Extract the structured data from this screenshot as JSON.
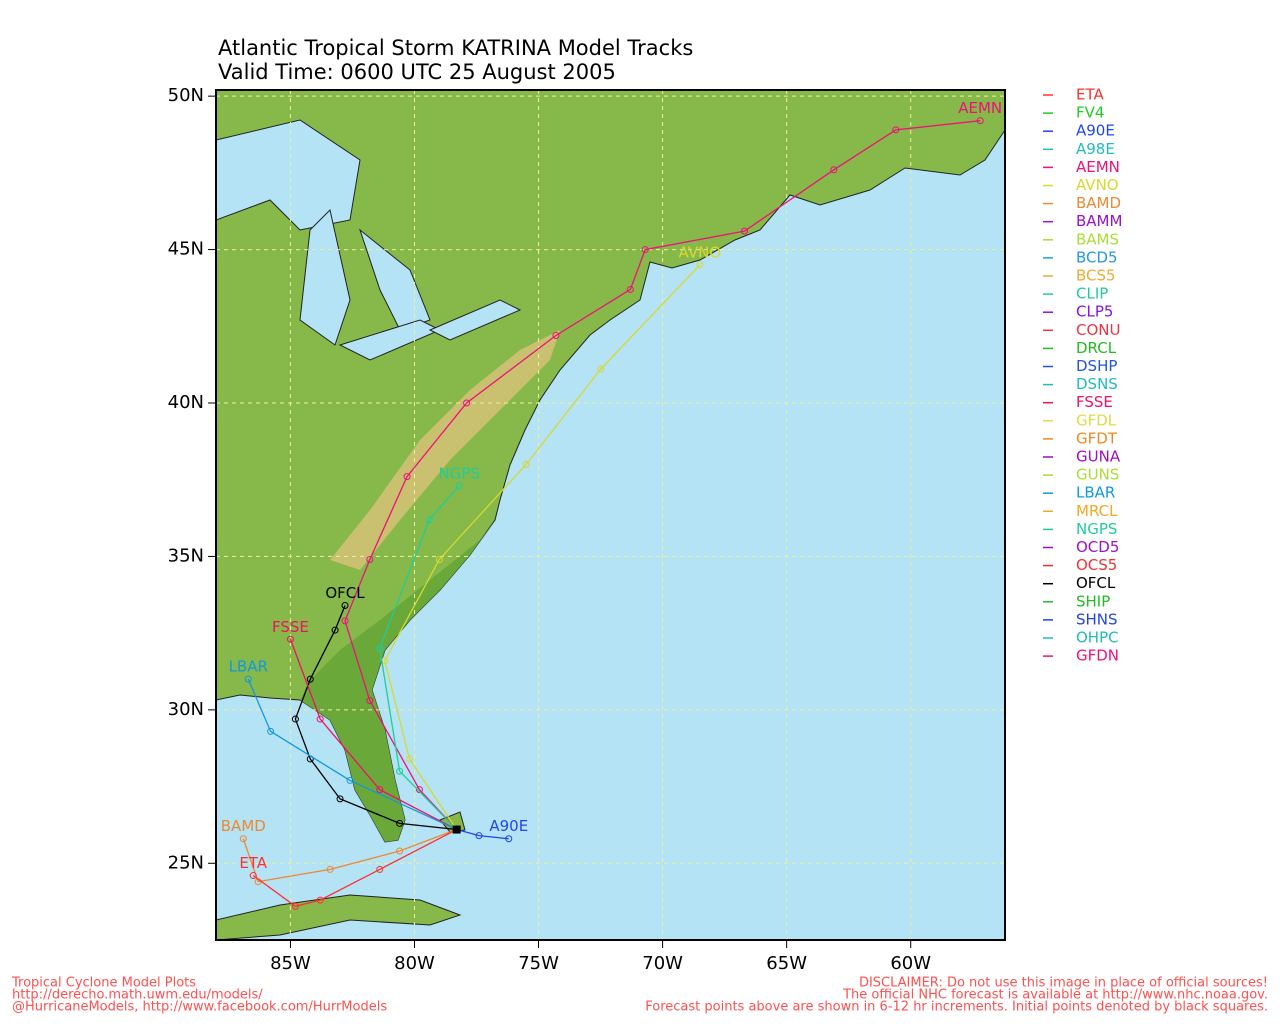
{
  "chart_data": {
    "type": "track",
    "title": "Atlantic Tropical Storm KATRINA Model Tracks",
    "subtitle": "Valid Time: 0600 UTC 25 August 2005",
    "xlim": [
      -88,
      -56.2
    ],
    "ylim": [
      22.5,
      50.2
    ],
    "xticks": [
      {
        "value": -85,
        "label": "85W"
      },
      {
        "value": -80,
        "label": "80W"
      },
      {
        "value": -75,
        "label": "75W"
      },
      {
        "value": -70,
        "label": "70W"
      },
      {
        "value": -65,
        "label": "65W"
      },
      {
        "value": -60,
        "label": "60W"
      }
    ],
    "yticks": [
      {
        "value": 25,
        "label": "25N"
      },
      {
        "value": 30,
        "label": "30N"
      },
      {
        "value": 35,
        "label": "35N"
      },
      {
        "value": 40,
        "label": "40N"
      },
      {
        "value": 45,
        "label": "45N"
      },
      {
        "value": 50,
        "label": "50N"
      }
    ],
    "grid": true,
    "legend": [
      {
        "name": "ETA",
        "color": "#ff3030"
      },
      {
        "name": "FV4",
        "color": "#22cc22"
      },
      {
        "name": "A90E",
        "color": "#2244ee"
      },
      {
        "name": "A98E",
        "color": "#22bbbb"
      },
      {
        "name": "AEMN",
        "color": "#ee1177"
      },
      {
        "name": "AVNO",
        "color": "#d8d830"
      },
      {
        "name": "BAMD",
        "color": "#ee8833"
      },
      {
        "name": "BAMM",
        "color": "#9911cc"
      },
      {
        "name": "BAMS",
        "color": "#aadd33"
      },
      {
        "name": "BCD5",
        "color": "#2299dd"
      },
      {
        "name": "BCS5",
        "color": "#eeaa33"
      },
      {
        "name": "CLIP",
        "color": "#22cc99"
      },
      {
        "name": "CLP5",
        "color": "#8811dd"
      },
      {
        "name": "CONU",
        "color": "#ee3344"
      },
      {
        "name": "DRCL",
        "color": "#22bb22"
      },
      {
        "name": "DSHP",
        "color": "#2255dd"
      },
      {
        "name": "DSNS",
        "color": "#22bbbb"
      },
      {
        "name": "FSSE",
        "color": "#ee1166"
      },
      {
        "name": "GFDL",
        "color": "#dddd44"
      },
      {
        "name": "GFDT",
        "color": "#ee8822"
      },
      {
        "name": "GUNA",
        "color": "#9911bb"
      },
      {
        "name": "GUNS",
        "color": "#aadd33"
      },
      {
        "name": "LBAR",
        "color": "#1199dd"
      },
      {
        "name": "MRCL",
        "color": "#eeaa22"
      },
      {
        "name": "NGPS",
        "color": "#22cc99"
      },
      {
        "name": "OCD5",
        "color": "#9911cc"
      },
      {
        "name": "OCS5",
        "color": "#ee3333"
      },
      {
        "name": "OFCL",
        "color": "#000000"
      },
      {
        "name": "SHIP",
        "color": "#22bb22"
      },
      {
        "name": "SHNS",
        "color": "#2244dd"
      },
      {
        "name": "OHPC",
        "color": "#22bbbb"
      },
      {
        "name": "GFDN",
        "color": "#ee1177"
      }
    ],
    "tracks": [
      {
        "name": "AEMN",
        "color": "#ee1177",
        "lon": [
          -78.3,
          -79.8,
          -81.8,
          -82.8,
          -81.8,
          -80.3,
          -77.9,
          -74.3,
          -71.3,
          -70.7,
          -66.7,
          -63.1,
          -60.6,
          -57.2
        ],
        "lat": [
          26.1,
          27.4,
          30.3,
          32.9,
          34.9,
          37.6,
          40.0,
          42.2,
          43.7,
          45.0,
          45.6,
          47.6,
          48.9,
          49.2
        ]
      },
      {
        "name": "AVNO",
        "color": "#d8d830",
        "lon": [
          -78.3,
          -80.2,
          -81.2,
          -79.0,
          -75.5,
          -72.5,
          -68.5
        ],
        "lat": [
          26.1,
          28.4,
          31.6,
          34.9,
          38.0,
          41.1,
          44.5
        ]
      },
      {
        "name": "NGPS",
        "color": "#22cc99",
        "lon": [
          -78.3,
          -80.6,
          -81.4,
          -79.4,
          -78.2
        ],
        "lat": [
          26.1,
          28.0,
          32.0,
          36.2,
          37.3
        ]
      },
      {
        "name": "OFCL",
        "color": "#000000",
        "lon": [
          -78.3,
          -80.6,
          -83.0,
          -84.2,
          -84.8,
          -84.2,
          -83.2,
          -82.8
        ],
        "lat": [
          26.1,
          26.3,
          27.1,
          28.4,
          29.7,
          31.0,
          32.6,
          33.4
        ]
      },
      {
        "name": "FSSE",
        "color": "#ee1166",
        "lon": [
          -78.3,
          -81.4,
          -83.8,
          -85.0
        ],
        "lat": [
          26.1,
          27.4,
          29.7,
          32.3
        ]
      },
      {
        "name": "LBAR",
        "color": "#1199dd",
        "lon": [
          -78.3,
          -82.6,
          -85.8,
          -86.7
        ],
        "lat": [
          26.1,
          27.7,
          29.3,
          31.0
        ]
      },
      {
        "name": "BAMD",
        "color": "#ee8833",
        "lon": [
          -78.3,
          -80.6,
          -83.4,
          -86.3,
          -86.9
        ],
        "lat": [
          26.1,
          25.4,
          24.8,
          24.4,
          25.8
        ]
      },
      {
        "name": "ETA",
        "color": "#ff3030",
        "lon": [
          -78.3,
          -81.4,
          -83.8,
          -84.8,
          -86.5
        ],
        "lat": [
          26.1,
          24.8,
          23.8,
          23.6,
          24.6
        ]
      },
      {
        "name": "A90E",
        "color": "#2244ee",
        "lon": [
          -78.3,
          -77.4,
          -76.2
        ],
        "lat": [
          26.1,
          25.9,
          25.8
        ]
      }
    ],
    "footer_left": [
      "Tropical Cyclone Model Plots",
      "http://derecho.math.uwm.edu/models/",
      "@HurricaneModels, http://www.facebook.com/HurrModels"
    ],
    "footer_right": [
      "DISCLAIMER: Do not use this image in place of official sources!",
      "The official NHC forecast is available at http://www.nhc.noaa.gov.",
      "Forecast points above are shown in 6-12 hr increments. Initial points denoted by black squares."
    ]
  }
}
